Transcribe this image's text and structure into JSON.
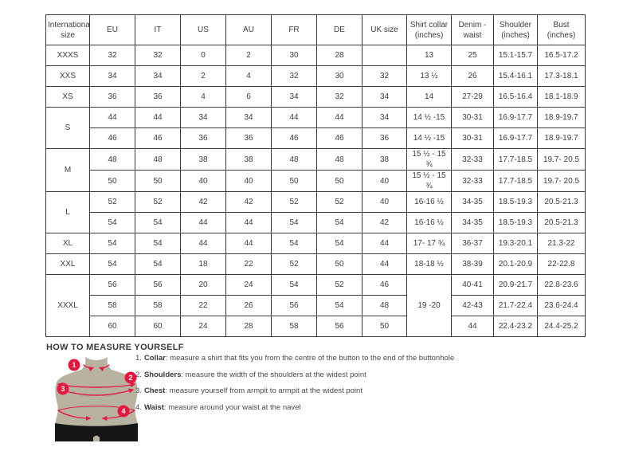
{
  "size_table": {
    "headers": [
      {
        "key": "international-size",
        "label": "International size"
      },
      {
        "key": "eu",
        "label": "EU"
      },
      {
        "key": "it",
        "label": "IT"
      },
      {
        "key": "us",
        "label": "US"
      },
      {
        "key": "au",
        "label": "AU"
      },
      {
        "key": "fr",
        "label": "FR"
      },
      {
        "key": "de",
        "label": "DE"
      },
      {
        "key": "uk-size",
        "label": "UK size"
      },
      {
        "key": "shirt-collar",
        "label": "Shirt collar (inches)"
      },
      {
        "key": "denim-waist",
        "label": "Denim - waist"
      },
      {
        "key": "shoulder",
        "label": "Shoulder (inches)"
      },
      {
        "key": "bust",
        "label": "Bust (inches)"
      }
    ],
    "groups": [
      {
        "size": "XXXS",
        "rows": [
          {
            "eu": "32",
            "it": "32",
            "us": "0",
            "au": "2",
            "fr": "30",
            "de": "28",
            "uk": "",
            "collar": "13",
            "denim": "25",
            "shoulder": "15.1-15.7",
            "bust": "16.5-17.2"
          }
        ]
      },
      {
        "size": "XXS",
        "rows": [
          {
            "eu": "34",
            "it": "34",
            "us": "2",
            "au": "4",
            "fr": "32",
            "de": "30",
            "uk": "32",
            "collar": "13 ½",
            "denim": "26",
            "shoulder": "15.4-16.1",
            "bust": "17.3-18.1"
          }
        ]
      },
      {
        "size": "XS",
        "rows": [
          {
            "eu": "36",
            "it": "36",
            "us": "4",
            "au": "6",
            "fr": "34",
            "de": "32",
            "uk": "34",
            "collar": "14",
            "denim": "27-29",
            "shoulder": "16.5-16.4",
            "bust": "18.1-18.9"
          }
        ]
      },
      {
        "size": "S",
        "rows": [
          {
            "eu": "44",
            "it": "44",
            "us": "34",
            "au": "34",
            "fr": "44",
            "de": "44",
            "uk": "34",
            "collar": "14 ½ -15",
            "denim": "30-31",
            "shoulder": "16.9-17.7",
            "bust": "18.9-19.7"
          },
          {
            "eu": "46",
            "it": "46",
            "us": "36",
            "au": "36",
            "fr": "46",
            "de": "46",
            "uk": "36",
            "collar": "14 ½ -15",
            "denim": "30-31",
            "shoulder": "16.9-17.7",
            "bust": "18.9-19.7"
          }
        ]
      },
      {
        "size": "M",
        "rows": [
          {
            "eu": "48",
            "it": "48",
            "us": "38",
            "au": "38",
            "fr": "48",
            "de": "48",
            "uk": "38",
            "collar": "15 ½ - 15 ¾",
            "denim": "32-33",
            "shoulder": "17.7-18.5",
            "bust": "19.7- 20.5"
          },
          {
            "eu": "50",
            "it": "50",
            "us": "40",
            "au": "40",
            "fr": "50",
            "de": "50",
            "uk": "40",
            "collar": "15 ½ - 15 ¾",
            "denim": "32-33",
            "shoulder": "17.7-18.5",
            "bust": "19.7- 20.5"
          }
        ]
      },
      {
        "size": "L",
        "rows": [
          {
            "eu": "52",
            "it": "52",
            "us": "42",
            "au": "42",
            "fr": "52",
            "de": "52",
            "uk": "40",
            "collar": "16-16 ½",
            "denim": "34-35",
            "shoulder": "18.5-19.3",
            "bust": "20.5-21.3"
          },
          {
            "eu": "54",
            "it": "54",
            "us": "44",
            "au": "44",
            "fr": "54",
            "de": "54",
            "uk": "42",
            "collar": "16-16 ½",
            "denim": "34-35",
            "shoulder": "18.5-19.3",
            "bust": "20.5-21.3"
          }
        ]
      },
      {
        "size": "XL",
        "rows": [
          {
            "eu": "54",
            "it": "54",
            "us": "44",
            "au": "44",
            "fr": "54",
            "de": "54",
            "uk": "44",
            "collar": "17- 17 ¾",
            "denim": "36-37",
            "shoulder": "19.3-20.1",
            "bust": "21.3-22"
          }
        ]
      },
      {
        "size": "XXL",
        "rows": [
          {
            "eu": "54",
            "it": "54",
            "us": "18",
            "au": "22",
            "fr": "52",
            "de": "50",
            "uk": "44",
            "collar": "18-18 ½",
            "denim": "38-39",
            "shoulder": "20.1-20.9",
            "bust": "22-22.8"
          }
        ]
      },
      {
        "size": "XXXL",
        "collar_merged": "19 -20",
        "rows": [
          {
            "eu": "56",
            "it": "56",
            "us": "20",
            "au": "24",
            "fr": "54",
            "de": "52",
            "uk": "46",
            "denim": "40-41",
            "shoulder": "20.9-21.7",
            "bust": "22.8-23.6"
          },
          {
            "eu": "58",
            "it": "58",
            "us": "22",
            "au": "26",
            "fr": "56",
            "de": "54",
            "uk": "48",
            "denim": "42-43",
            "shoulder": "21.7-22.4",
            "bust": "23.6-24.4"
          },
          {
            "eu": "60",
            "it": "60",
            "us": "24",
            "au": "28",
            "fr": "58",
            "de": "56",
            "uk": "50",
            "denim": "44",
            "shoulder": "22.4-23.2",
            "bust": "24.4-25.2"
          }
        ]
      }
    ]
  },
  "measure_guide": {
    "title": "HOW TO MEASURE YOURSELF",
    "steps": [
      {
        "num": "1.",
        "label": "Collar",
        "text": ": measure a shirt that fits you from the centre of the button to the end of the buttonhole"
      },
      {
        "num": "2.",
        "label": "Shoulders",
        "text": ": measure the width of the shoulders at the widest point"
      },
      {
        "num": "3.",
        "label": "Chest",
        "text": ": measure yourself from armpit to armpit at the widest point"
      },
      {
        "num": "4.",
        "label": "Waist",
        "text": ": measure around your waist at the navel"
      }
    ],
    "figure_markers": [
      "1",
      "2",
      "3",
      "4"
    ],
    "colors": {
      "marker_red": "#e5173f",
      "body_tan": "#b8b2a0",
      "body_shade": "#a69e8b",
      "shorts_black": "#161616",
      "table_border": "#3b3b3b",
      "text": "#3d3d3d"
    }
  }
}
